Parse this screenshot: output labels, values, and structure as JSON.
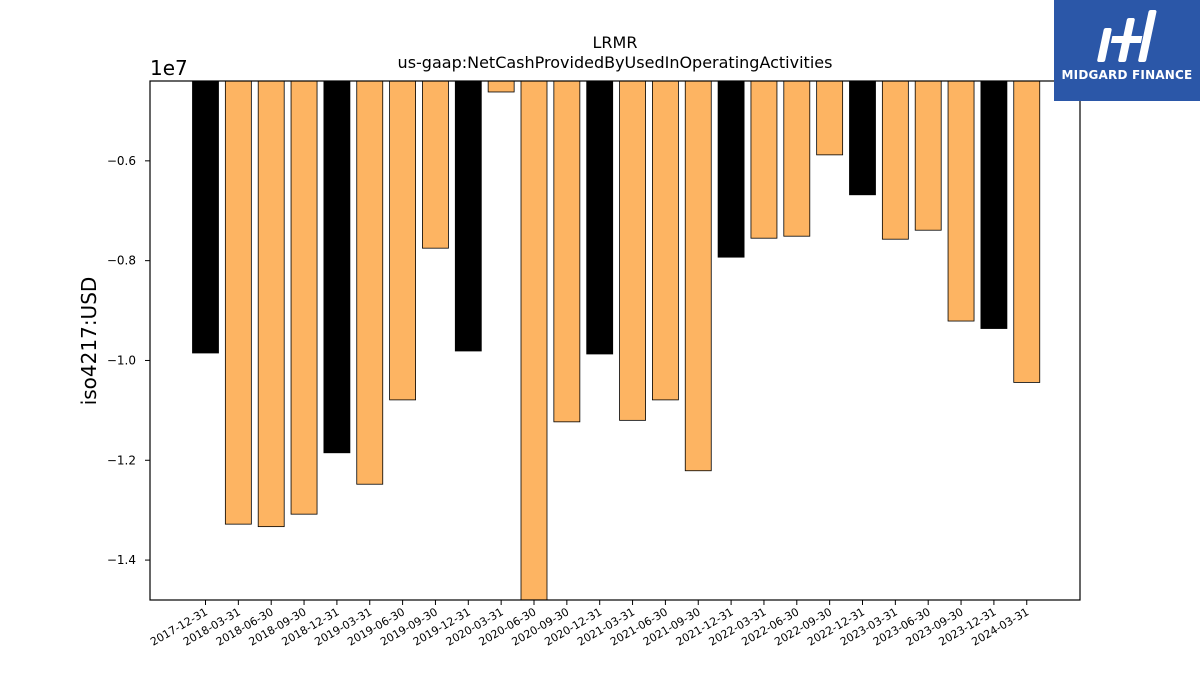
{
  "chart_data": {
    "type": "bar",
    "title": "LRMR",
    "subtitle": "us-gaap:NetCashProvidedByUsedInOperatingActivities",
    "ylabel": "iso4217:USD",
    "xlabel": "",
    "y_multiplier_label": "1e7",
    "ylim": [
      -14.8,
      -4.4
    ],
    "yticks": [
      -0.6,
      -0.8,
      -1.0,
      -1.2,
      -1.4
    ],
    "grid": false,
    "colors": {
      "annual": "#000000",
      "quarterly": "#fdb462",
      "edge": "#000000"
    },
    "categories": [
      "2017-12-31",
      "2018-03-31",
      "2018-06-30",
      "2018-09-30",
      "2018-12-31",
      "2019-03-31",
      "2019-06-30",
      "2019-09-30",
      "2019-12-31",
      "2020-03-31",
      "2020-06-30",
      "2020-09-30",
      "2020-12-31",
      "2021-03-31",
      "2021-06-30",
      "2021-09-30",
      "2021-12-31",
      "2022-03-31",
      "2022-06-30",
      "2022-09-30",
      "2022-12-31",
      "2023-03-31",
      "2023-06-30",
      "2023-09-30",
      "2023-12-31",
      "2024-03-31"
    ],
    "values": [
      -9.85,
      -13.28,
      -13.33,
      -13.08,
      -11.85,
      -12.48,
      -10.79,
      -7.75,
      -9.81,
      -4.62,
      -14.8,
      -11.23,
      -9.87,
      -11.2,
      -10.79,
      -12.21,
      -7.93,
      -7.55,
      -7.51,
      -5.88,
      -6.68,
      -7.57,
      -7.39,
      -9.21,
      -9.36,
      -10.44
    ],
    "series_type": [
      "annual",
      "quarterly",
      "quarterly",
      "quarterly",
      "annual",
      "quarterly",
      "quarterly",
      "quarterly",
      "annual",
      "quarterly",
      "quarterly",
      "quarterly",
      "annual",
      "quarterly",
      "quarterly",
      "quarterly",
      "annual",
      "quarterly",
      "quarterly",
      "quarterly",
      "annual",
      "quarterly",
      "quarterly",
      "quarterly",
      "annual",
      "quarterly"
    ]
  },
  "logo": {
    "text": "MIDGARD FINANCE",
    "color": "#2b57a8"
  }
}
